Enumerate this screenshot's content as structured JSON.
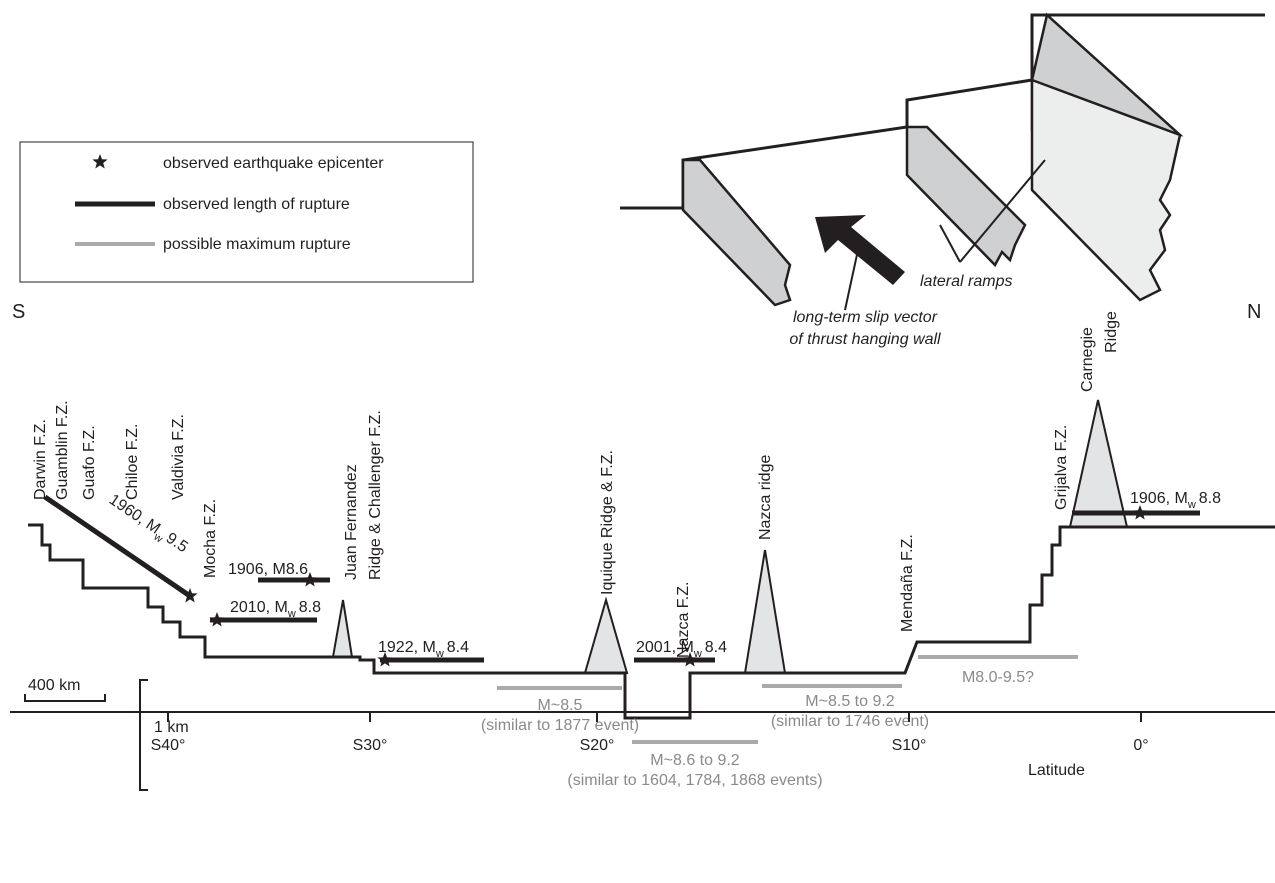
{
  "legend": {
    "items": [
      "observed earthquake epicenter",
      "observed length of rupture",
      "possible maximum rupture"
    ]
  },
  "directions": {
    "south": "S",
    "north": "N"
  },
  "block_diagram": {
    "slip_vector": [
      "long-term slip vector",
      "of thrust hanging wall"
    ],
    "ramps": "lateral ramps"
  },
  "features": [
    "Darwin F.Z.",
    "Guamblin F.Z.",
    "Guafo F.Z.",
    "Chiloe F.Z.",
    "Valdivia F.Z.",
    "Mocha F.Z.",
    [
      "Juan Fernandez",
      "Ridge & Challenger F.Z."
    ],
    "Iquique Ridge & F.Z.",
    "Nazca F.Z.",
    "Nazca ridge",
    "Mendaña F.Z.",
    "Grijalva F.Z.",
    [
      "Carnegie",
      "Ridge"
    ]
  ],
  "events": [
    {
      "prefix": "1960, M",
      "sub": "w",
      "suffix": "9.5"
    },
    {
      "prefix": "1906, M8.6"
    },
    {
      "prefix": "2010, M",
      "sub": "w",
      "suffix": "8.8"
    },
    {
      "prefix": "1922, M",
      "sub": "w",
      "suffix": "8.4"
    },
    {
      "prefix": "2001, M",
      "sub": "w",
      "suffix": "8.4"
    },
    {
      "prefix": "1906, M",
      "sub": "w",
      "suffix": "8.8"
    }
  ],
  "possible": [
    [
      "M~8.5",
      "(similar to 1877 event)"
    ],
    [
      "M~8.6 to 9.2",
      "(similar to 1604, 1784, 1868 events)"
    ],
    [
      "M~8.5 to 9.2",
      "(similar to 1746 event)"
    ],
    [
      "M8.0-9.5?"
    ]
  ],
  "scale": {
    "horizontal": "400 km",
    "vertical": "1 km"
  },
  "axis": {
    "ticks": [
      "S40°",
      "S30°",
      "S20°",
      "S10°",
      "0°"
    ],
    "label": "Latitude"
  }
}
